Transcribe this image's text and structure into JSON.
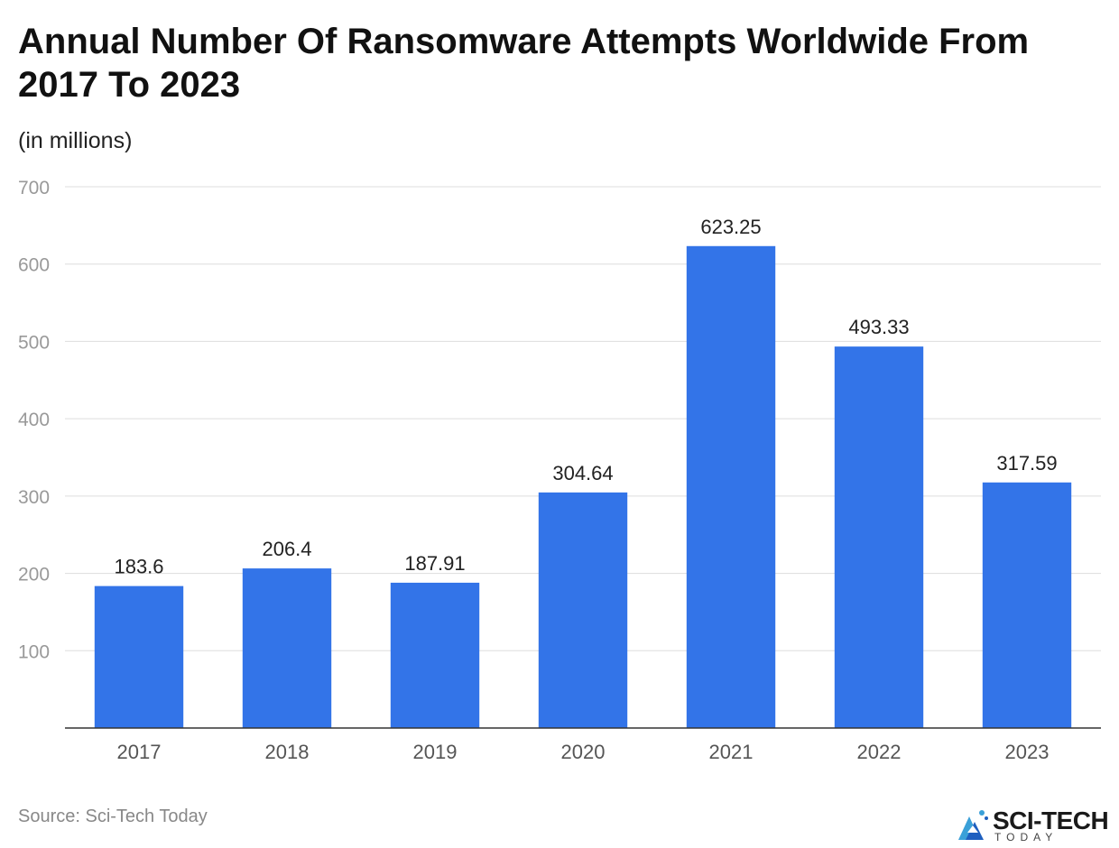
{
  "title": "Annual Number Of Ransomware Attempts Worldwide From 2017 To 2023",
  "subtitle": "(in millions)",
  "source": "Source: Sci-Tech Today",
  "logo": {
    "main": "SCI-TECH",
    "sub": "TODAY"
  },
  "colors": {
    "bar": "#3374E8",
    "grid": "#DDDDDD",
    "axis": "#333333",
    "tick": "#999999",
    "xtick": "#555555"
  },
  "chart_data": {
    "type": "bar",
    "categories": [
      "2017",
      "2018",
      "2019",
      "2020",
      "2021",
      "2022",
      "2023"
    ],
    "values": [
      183.6,
      206.4,
      187.91,
      304.64,
      623.25,
      493.33,
      317.59
    ],
    "value_labels": [
      "183.6",
      "206.4",
      "187.91",
      "304.64",
      "623.25",
      "493.33",
      "317.59"
    ],
    "yticks": [
      100,
      200,
      300,
      400,
      500,
      600,
      700
    ],
    "ylim": [
      0,
      700
    ],
    "grid": true,
    "legend": "none"
  }
}
